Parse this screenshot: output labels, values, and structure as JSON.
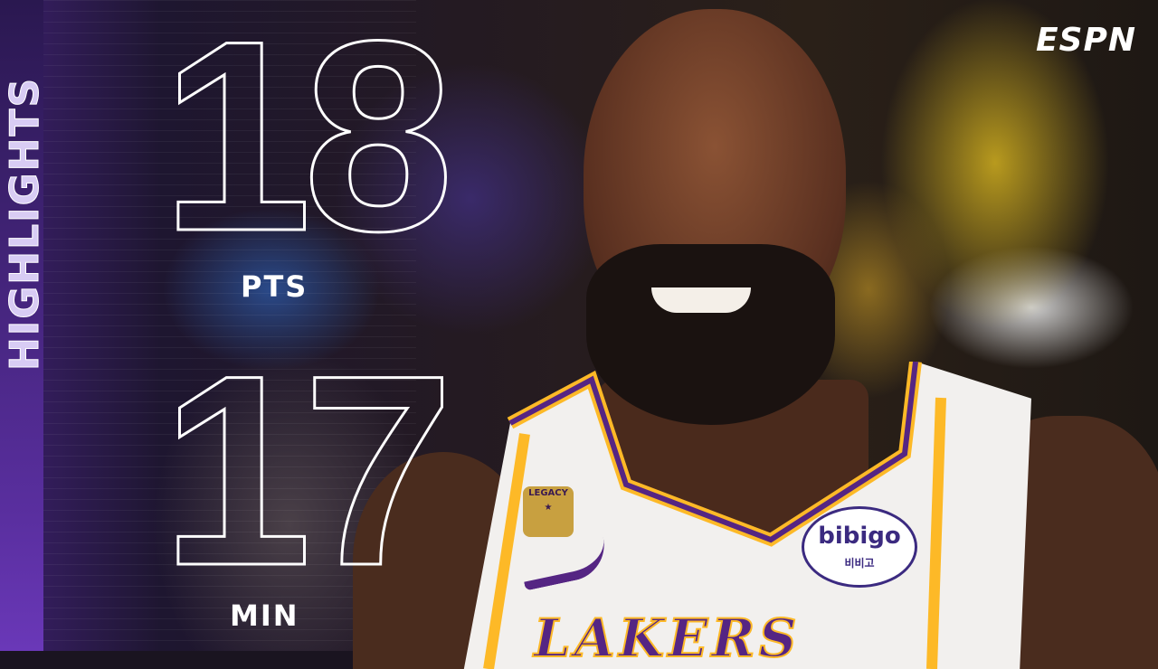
{
  "side_label": "HIGHLIGHTS",
  "stats": [
    {
      "value": "18",
      "label": "PTS"
    },
    {
      "value": "17",
      "label": "MIN"
    }
  ],
  "logo": "ESPN",
  "jersey_logos": {
    "team": "LAKERS",
    "sponsor": "bibigo",
    "sponsor_korean": "비비고",
    "patch": "LEGACY"
  },
  "colors": {
    "purple": "#552583",
    "gold": "#FDB927",
    "jersey": "#F2F0EE"
  }
}
